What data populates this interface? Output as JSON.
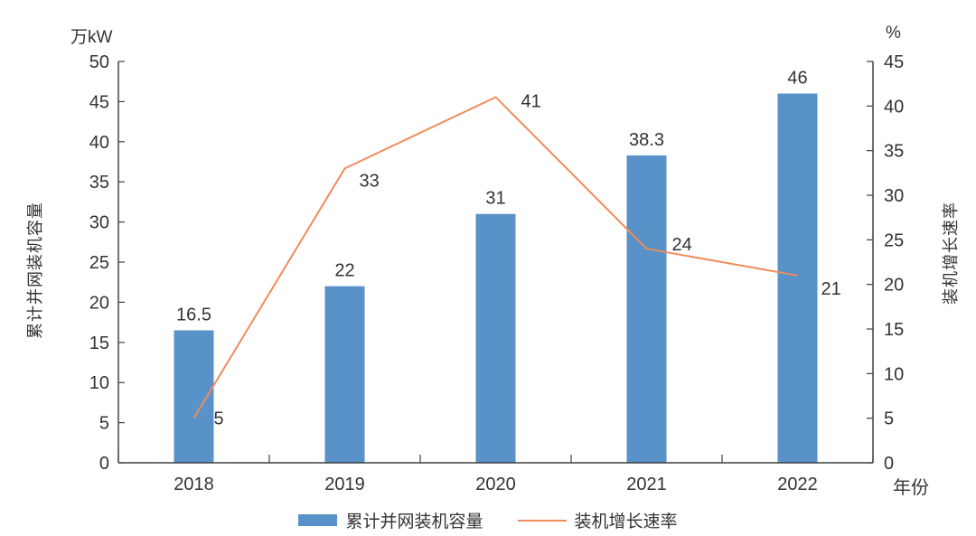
{
  "chart_data": {
    "type": "combo-bar-line",
    "categories": [
      "2018",
      "2019",
      "2020",
      "2021",
      "2022"
    ],
    "series": [
      {
        "name": "累计并网装机容量",
        "chart": "bar",
        "axis": "left",
        "values": [
          16.5,
          22,
          31,
          38.3,
          46
        ],
        "data_labels": [
          "16.5",
          "22",
          "31",
          "38.3",
          "46"
        ],
        "color": "#5892C8"
      },
      {
        "name": "装机增长速率",
        "chart": "line",
        "axis": "right",
        "values": [
          5,
          33,
          41,
          24,
          21
        ],
        "data_labels": [
          "5",
          "33",
          "41",
          "24",
          "21"
        ],
        "color": "#EF8C5B"
      }
    ],
    "axes": {
      "left": {
        "unit": "万kW",
        "title": "累计并网装机容量",
        "min": 0,
        "max": 50,
        "step": 5,
        "ticks": [
          "0",
          "5",
          "10",
          "15",
          "20",
          "25",
          "30",
          "35",
          "40",
          "45",
          "50"
        ]
      },
      "right": {
        "unit": "%",
        "title": "装机增长速率",
        "min": 0,
        "max": 45,
        "step": 5,
        "ticks": [
          "0",
          "5",
          "10",
          "15",
          "20",
          "25",
          "30",
          "35",
          "40",
          "45"
        ]
      },
      "x": {
        "title": "年份"
      }
    },
    "grid": false,
    "legend_position": "bottom"
  },
  "colors": {
    "bar": "#5892C8",
    "line": "#EF8C5B",
    "axis": "#404040",
    "text": "#333333"
  }
}
